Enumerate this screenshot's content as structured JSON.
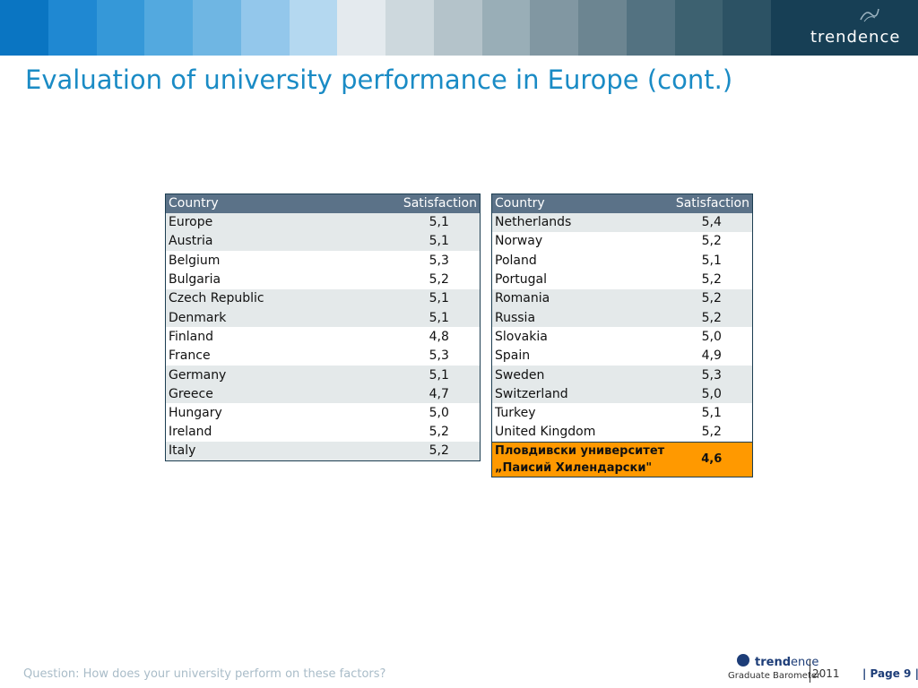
{
  "header": {
    "stripe_colors": [
      "#0a75c2",
      "#1f88d2",
      "#3598d8",
      "#53a9df",
      "#6fb6e3",
      "#93c7eb",
      "#b4d8f0",
      "#e4eaee",
      "#cdd8dd",
      "#b4c3ca",
      "#99aeb7",
      "#8197a2",
      "#6c8591",
      "#537281",
      "#3d6170",
      "#2c5264"
    ],
    "logo_text": "trendence"
  },
  "title": "Evaluation of university performance in Europe (cont.)",
  "left_table": {
    "col_country": "Country",
    "col_satisfaction": "Satisfaction",
    "rows": [
      {
        "country": "Europe",
        "value": "5,1"
      },
      {
        "country": "Austria",
        "value": "5,1"
      },
      {
        "country": "Belgium",
        "value": "5,3"
      },
      {
        "country": "Bulgaria",
        "value": "5,2"
      },
      {
        "country": "Czech Republic",
        "value": "5,1"
      },
      {
        "country": "Denmark",
        "value": "5,1"
      },
      {
        "country": "Finland",
        "value": "4,8"
      },
      {
        "country": "France",
        "value": "5,3"
      },
      {
        "country": "Germany",
        "value": "5,1"
      },
      {
        "country": "Greece",
        "value": "4,7"
      },
      {
        "country": "Hungary",
        "value": "5,0"
      },
      {
        "country": "Ireland",
        "value": "5,2"
      },
      {
        "country": "Italy",
        "value": "5,2"
      }
    ]
  },
  "right_table": {
    "col_country": "Country",
    "col_satisfaction": "Satisfaction",
    "rows": [
      {
        "country": "Netherlands",
        "value": "5,4"
      },
      {
        "country": "Norway",
        "value": "5,2"
      },
      {
        "country": "Poland",
        "value": "5,1"
      },
      {
        "country": "Portugal",
        "value": "5,2"
      },
      {
        "country": "Romania",
        "value": "5,2"
      },
      {
        "country": "Russia",
        "value": "5,2"
      },
      {
        "country": "Slovakia",
        "value": "5,0"
      },
      {
        "country": "Spain",
        "value": "4,9"
      },
      {
        "country": "Sweden",
        "value": "5,3"
      },
      {
        "country": "Switzerland",
        "value": "5,0"
      },
      {
        "country": "Turkey",
        "value": "5,1"
      },
      {
        "country": "United Kingdom",
        "value": "5,2"
      }
    ],
    "highlight": {
      "line1": "Пловдивски университет",
      "line2": "„Паисий Хилендарски\"",
      "value": "4,6"
    }
  },
  "colors": {
    "title": "#1a8bc5",
    "table_header": "#5b7288",
    "row_shade": "#e4e9ea",
    "highlight": "#ff9900"
  },
  "footer": {
    "question": "Question: How does your university perform on these factors?",
    "brand_bold": "trend",
    "brand_rest": "ence",
    "brand_sub": "Graduate Barometer",
    "year": "2011",
    "page_label": "| Page 9 |"
  }
}
